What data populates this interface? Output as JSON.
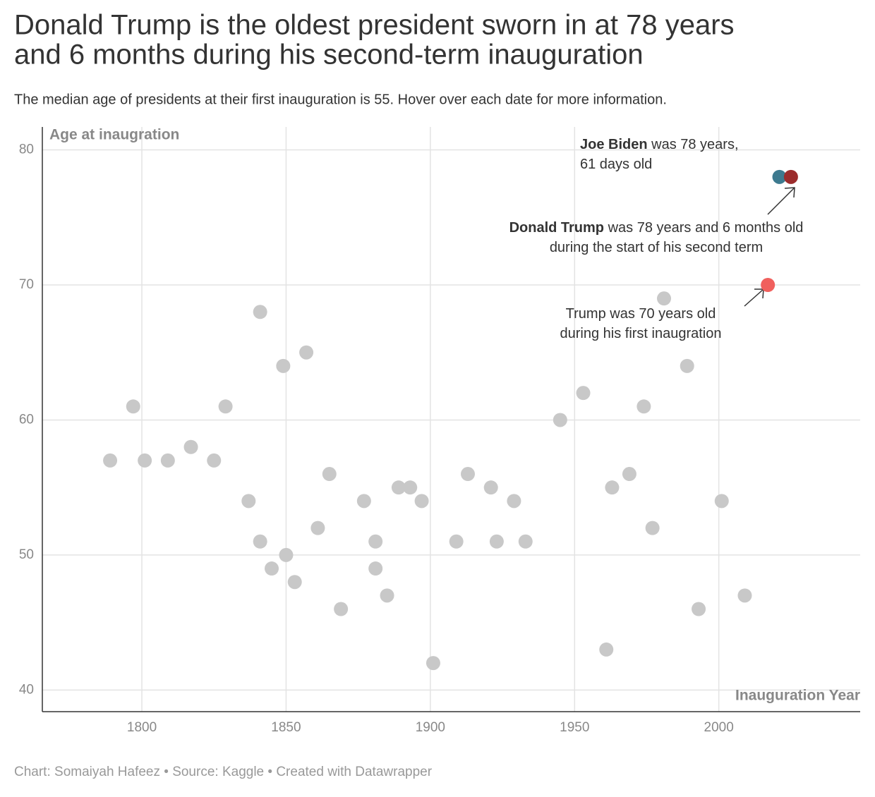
{
  "chart_data": {
    "type": "scatter",
    "title": [
      "Donald Trump is the oldest president sworn in at 78 years",
      "and 6 months during his second-term inauguration"
    ],
    "subtitle": "The median age of presidents at their first inauguration is 55. Hover over each date for more information.",
    "y_label": "Age at inaugration",
    "x_label": "Inauguration Year",
    "footer": "Chart: Somaiyah Hafeez • Source: Kaggle  • Created with Datawrapper",
    "xlim": [
      1765.5,
      2049
    ],
    "ylim": [
      38.4,
      81.7
    ],
    "xticks": [
      1800,
      1850,
      1900,
      1950,
      2000
    ],
    "yticks": [
      40,
      50,
      60,
      70,
      80
    ],
    "grid": true,
    "series": [
      {
        "color": "#c8c8c8",
        "x": [
          1789,
          1797,
          1801,
          1809,
          1817,
          1825,
          1829,
          1837,
          1841,
          1841,
          1845,
          1849,
          1850,
          1853,
          1857,
          1861,
          1865,
          1869,
          1877,
          1881,
          1881,
          1885,
          1889,
          1893,
          1897,
          1901,
          1909,
          1913,
          1921,
          1923,
          1929,
          1933,
          1945,
          1953,
          1961,
          1963,
          1969,
          1974,
          1977,
          1981,
          1989,
          1993,
          2001,
          2009
        ],
        "values": [
          57,
          61,
          57,
          57,
          58,
          57,
          61,
          54,
          68,
          51,
          49,
          64,
          50,
          48,
          65,
          52,
          56,
          46,
          54,
          49,
          51,
          47,
          55,
          55,
          54,
          42,
          51,
          56,
          55,
          51,
          54,
          51,
          60,
          62,
          43,
          55,
          56,
          61,
          52,
          69,
          64,
          46,
          54,
          47
        ]
      },
      {
        "color": "#f0605d",
        "x": [
          2017
        ],
        "values": [
          70
        ]
      },
      {
        "color": "#3d7a8f",
        "x": [
          2021
        ],
        "values": [
          78
        ]
      },
      {
        "color": "#9b2c2c",
        "x": [
          2025
        ],
        "values": [
          78
        ]
      }
    ],
    "annotations": [
      {
        "bold": "Joe Biden",
        "lines": [
          " was 78 years,",
          "61 days old"
        ]
      },
      {
        "bold": "Donald Trump",
        "lines": [
          " was 78 years and 6 months old",
          "during the start of his second term"
        ]
      },
      {
        "lines": [
          "Trump was 70 years old",
          "during his first inaugration"
        ]
      }
    ]
  }
}
